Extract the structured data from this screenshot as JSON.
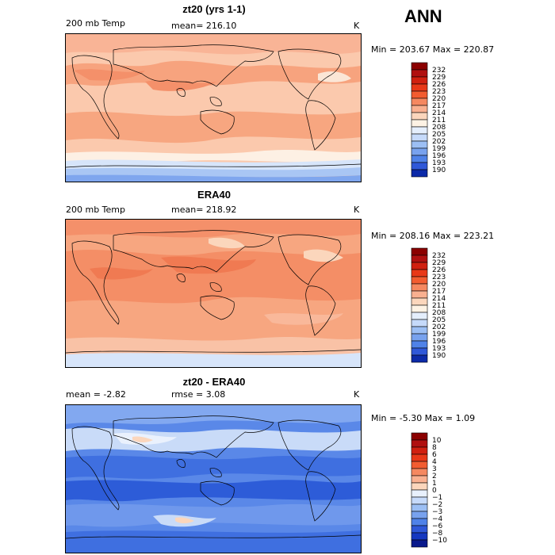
{
  "header": {
    "season": "ANN"
  },
  "panels": [
    {
      "id": "model",
      "title": "zt20 (yrs 1-1)",
      "left_label": "200 mb Temp",
      "center_label": "mean= 216.10",
      "units": "K",
      "minmax": "Min = 203.67 Max = 220.87",
      "colorbar": {
        "ticks": [
          "232",
          "229",
          "226",
          "223",
          "220",
          "217",
          "214",
          "211",
          "208",
          "205",
          "202",
          "199",
          "196",
          "193",
          "190"
        ],
        "colors": [
          "#8b0000",
          "#b01010",
          "#d02010",
          "#e83818",
          "#f25c30",
          "#f58860",
          "#f9b090",
          "#fbd6bc",
          "#fdf2e4",
          "#e4eefc",
          "#c6dafa",
          "#9cbff4",
          "#78a2ee",
          "#4f82e8",
          "#2f58d8",
          "#0c2aa8"
        ]
      }
    },
    {
      "id": "obs",
      "title": "ERA40",
      "left_label": "200 mb Temp",
      "center_label": "mean= 218.92",
      "units": "K",
      "minmax": "Min = 208.16 Max = 223.21",
      "colorbar": {
        "ticks": [
          "232",
          "229",
          "226",
          "223",
          "220",
          "217",
          "214",
          "211",
          "208",
          "205",
          "202",
          "199",
          "196",
          "193",
          "190"
        ],
        "colors": [
          "#8b0000",
          "#b01010",
          "#d02010",
          "#e83818",
          "#f25c30",
          "#f58860",
          "#f9b090",
          "#fbd6bc",
          "#fdf2e4",
          "#e4eefc",
          "#c6dafa",
          "#9cbff4",
          "#78a2ee",
          "#4f82e8",
          "#2f58d8",
          "#0c2aa8"
        ]
      }
    },
    {
      "id": "diff",
      "title": "zt20 - ERA40",
      "left_label": "mean =   -2.82",
      "center_label": "rmse =   3.08",
      "units": "K",
      "minmax": "Min =  -5.30 Max =   1.09",
      "colorbar": {
        "ticks": [
          "10",
          "8",
          "6",
          "4",
          "3",
          "2",
          "1",
          "0",
          "−1",
          "−2",
          "−3",
          "−4",
          "−6",
          "−8",
          "−10"
        ],
        "colors": [
          "#8b0000",
          "#b01010",
          "#d02010",
          "#e83818",
          "#f25c30",
          "#f58860",
          "#f9b090",
          "#fbd6bc",
          "#e8f0fc",
          "#c6dafa",
          "#9cbff4",
          "#78a2ee",
          "#4f82e8",
          "#2f58d8",
          "#1638c0",
          "#0a1a8c"
        ]
      }
    }
  ]
}
